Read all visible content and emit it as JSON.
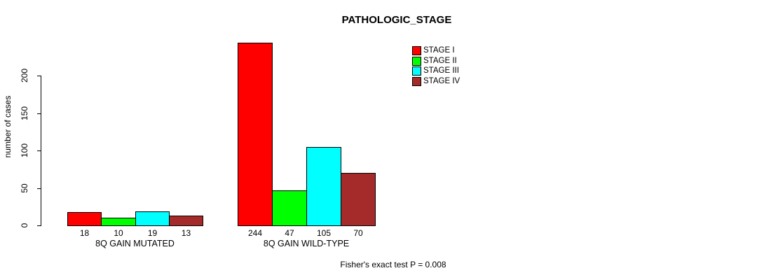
{
  "title": "PATHOLOGIC_STAGE",
  "y_axis": {
    "label": "number of cases",
    "ticks": [
      0,
      50,
      100,
      150,
      200
    ]
  },
  "footer": "Fisher's exact test P = 0.008",
  "legend": {
    "position": "top-right",
    "entries": [
      {
        "label": "STAGE I",
        "color": "#FF0000"
      },
      {
        "label": "STAGE II",
        "color": "#00FF00"
      },
      {
        "label": "STAGE III",
        "color": "#00FFFF"
      },
      {
        "label": "STAGE IV",
        "color": "#A52A2A"
      }
    ]
  },
  "chart_data": {
    "type": "bar",
    "title": "PATHOLOGIC_STAGE",
    "xlabel": "",
    "ylabel": "number of cases",
    "categories": [
      "8Q GAIN MUTATED",
      "8Q GAIN WILD-TYPE"
    ],
    "series": [
      {
        "name": "STAGE I",
        "color": "#FF0000",
        "values": [
          18,
          244
        ]
      },
      {
        "name": "STAGE II",
        "color": "#00FF00",
        "values": [
          10,
          47
        ]
      },
      {
        "name": "STAGE III",
        "color": "#00FFFF",
        "values": [
          19,
          105
        ]
      },
      {
        "name": "STAGE IV",
        "color": "#A52A2A",
        "values": [
          13,
          70
        ]
      }
    ],
    "bar_value_labels": [
      [
        18,
        10,
        19,
        13
      ],
      [
        244,
        47,
        105,
        70
      ]
    ],
    "yticks": [
      0,
      50,
      100,
      150,
      200
    ],
    "ylim": [
      0,
      244
    ],
    "grid": false,
    "legend_position": "top-right",
    "bars_outlined": true,
    "annotation": "Fisher's exact test P = 0.008"
  }
}
